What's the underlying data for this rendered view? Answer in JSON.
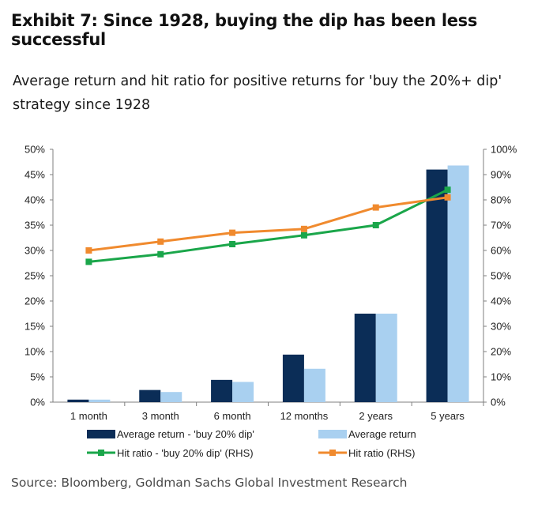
{
  "header": {
    "exhibit_title": "Exhibit 7: Since 1928, buying the dip has been less successful",
    "subtitle": "Average return and hit ratio for positive returns for 'buy the 20%+ dip' strategy since 1928"
  },
  "footer": {
    "source": "Source: Bloomberg, Goldman Sachs Global Investment Research"
  },
  "colors": {
    "navy": "#0b2d57",
    "light_blue": "#a9d0f0",
    "green": "#1aa64a",
    "orange": "#f08a2e",
    "axis": "#7f7f7f"
  },
  "chart_data": {
    "type": "bar",
    "categories": [
      "1 month",
      "3 month",
      "6 month",
      "12 months",
      "2 years",
      "5 years"
    ],
    "ylim": [
      0,
      50
    ],
    "y_ticks": [
      "0%",
      "5%",
      "10%",
      "15%",
      "20%",
      "25%",
      "30%",
      "35%",
      "40%",
      "45%",
      "50%"
    ],
    "y2lim": [
      0,
      100
    ],
    "y2_ticks": [
      "0%",
      "10%",
      "20%",
      "30%",
      "40%",
      "50%",
      "60%",
      "70%",
      "80%",
      "90%",
      "100%"
    ],
    "grid": false,
    "legend_position": "bottom",
    "bar_series": [
      {
        "name": "Average return - 'buy 20% dip'",
        "values": [
          0.5,
          2.4,
          4.4,
          9.4,
          17.5,
          46.0
        ],
        "color": "#0b2d57"
      },
      {
        "name": "Average return",
        "values": [
          0.5,
          2.0,
          4.0,
          6.6,
          17.5,
          46.8
        ],
        "color": "#a9d0f0"
      }
    ],
    "line_series": [
      {
        "name": "Hit ratio - 'buy 20% dip' (RHS)",
        "values": [
          55.5,
          58.5,
          62.5,
          66.0,
          70.0,
          84.0
        ],
        "color": "#1aa64a",
        "axis": "right"
      },
      {
        "name": "Hit ratio (RHS)",
        "values": [
          60.0,
          63.5,
          67.0,
          68.5,
          77.0,
          81.0
        ],
        "color": "#f08a2e",
        "axis": "right"
      }
    ]
  }
}
